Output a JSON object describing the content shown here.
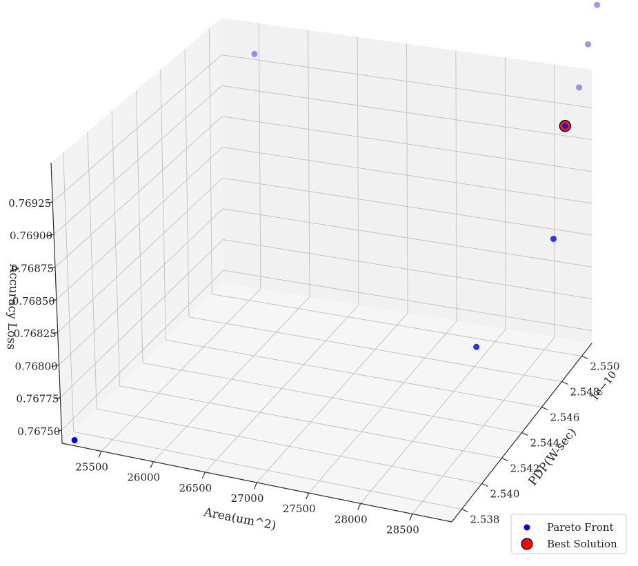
{
  "chart_data": {
    "type": "scatter",
    "title": "",
    "xlabel": "Area(um^2)",
    "ylabel": "PDP(W-sec)",
    "zlabel": "Accuracy Loss",
    "y_offset_text": "1e−10",
    "x_ticks": [
      "25500",
      "26000",
      "26500",
      "27000",
      "27500",
      "28000",
      "28500"
    ],
    "y_ticks": [
      "2.538",
      "2.540",
      "2.542",
      "2.544",
      "2.546",
      "2.548",
      "2.550"
    ],
    "z_ticks": [
      "0.76750",
      "0.76775",
      "0.76800",
      "0.76825",
      "0.76850",
      "0.76875",
      "0.76900",
      "0.76925"
    ],
    "grid": true,
    "legend": {
      "location": "lower right"
    },
    "series": [
      {
        "name": "Pareto Front",
        "color": "#0000ff",
        "marker": "circle",
        "points": [
          {
            "area": 25300,
            "pdp": 2.5515,
            "acc_loss": 0.7675
          },
          {
            "area": 28350,
            "pdp": 2.543,
            "acc_loss": 0.7679
          },
          {
            "area": 28900,
            "pdp": 2.5405,
            "acc_loss": 0.76858
          },
          {
            "area": 28900,
            "pdp": 2.539,
            "acc_loss": 0.76932
          },
          {
            "area": 28950,
            "pdp": 2.538,
            "acc_loss": 0.76953
          },
          {
            "area": 28950,
            "pdp": 2.537,
            "acc_loss": 0.76977
          },
          {
            "area": 28950,
            "pdp": 2.536,
            "acc_loss": 0.76998
          },
          {
            "area": 25400,
            "pdp": 2.536,
            "acc_loss": 0.76915
          }
        ]
      },
      {
        "name": "Best Solution",
        "color": "#ff0000",
        "edge_color": "#000000",
        "marker": "circle",
        "points": [
          {
            "area": 28900,
            "pdp": 2.539,
            "acc_loss": 0.76932
          }
        ]
      }
    ]
  }
}
